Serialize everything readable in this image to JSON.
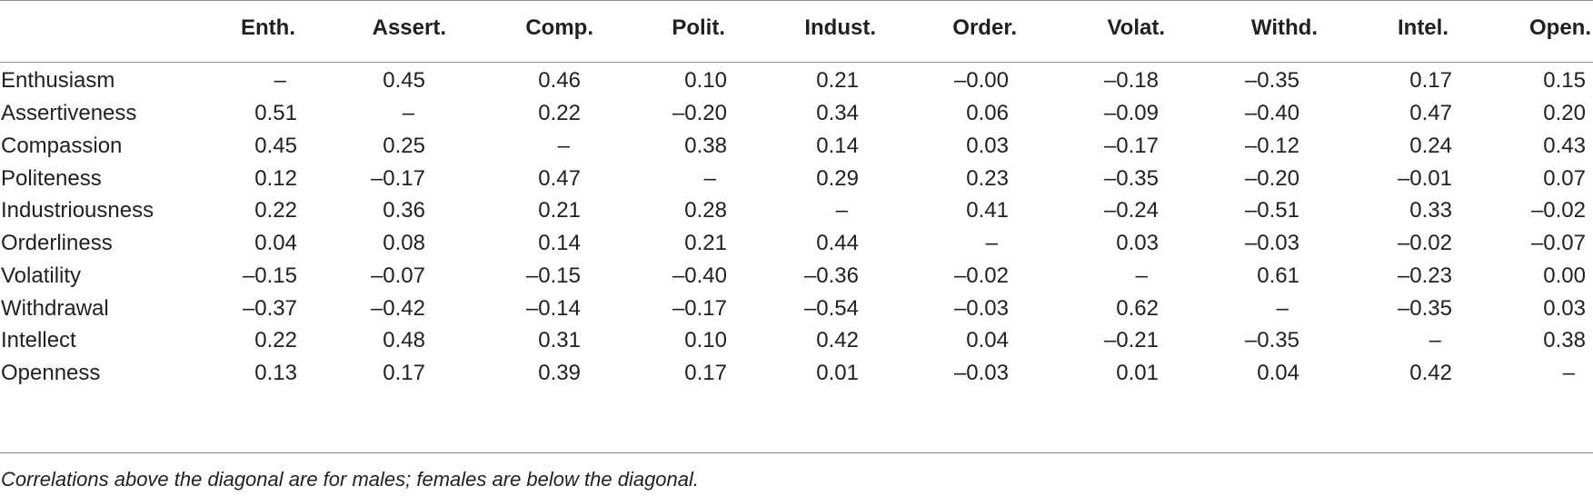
{
  "table": {
    "column_headers": [
      "Enth.",
      "Assert.",
      "Comp.",
      "Polit.",
      "Indust.",
      "Order.",
      "Volat.",
      "Withd.",
      "Intel.",
      "Open."
    ],
    "rows": [
      {
        "label": "Enthusiasm",
        "values": [
          "–",
          "0.45",
          "0.46",
          "0.10",
          "0.21",
          "–0.00",
          "–0.18",
          "–0.35",
          "0.17",
          "0.15"
        ]
      },
      {
        "label": "Assertiveness",
        "values": [
          "0.51",
          "–",
          "0.22",
          "–0.20",
          "0.34",
          "0.06",
          "–0.09",
          "–0.40",
          "0.47",
          "0.20"
        ]
      },
      {
        "label": "Compassion",
        "values": [
          "0.45",
          "0.25",
          "–",
          "0.38",
          "0.14",
          "0.03",
          "–0.17",
          "–0.12",
          "0.24",
          "0.43"
        ]
      },
      {
        "label": "Politeness",
        "values": [
          "0.12",
          "–0.17",
          "0.47",
          "–",
          "0.29",
          "0.23",
          "–0.35",
          "–0.20",
          "–0.01",
          "0.07"
        ]
      },
      {
        "label": "Industriousness",
        "values": [
          "0.22",
          "0.36",
          "0.21",
          "0.28",
          "–",
          "0.41",
          "–0.24",
          "–0.51",
          "0.33",
          "–0.02"
        ]
      },
      {
        "label": "Orderliness",
        "values": [
          "0.04",
          "0.08",
          "0.14",
          "0.21",
          "0.44",
          "–",
          "0.03",
          "–0.03",
          "–0.02",
          "–0.07"
        ]
      },
      {
        "label": "Volatility",
        "values": [
          "–0.15",
          "–0.07",
          "–0.15",
          "–0.40",
          "–0.36",
          "–0.02",
          "–",
          "0.61",
          "–0.23",
          "0.00"
        ]
      },
      {
        "label": "Withdrawal",
        "values": [
          "–0.37",
          "–0.42",
          "–0.14",
          "–0.17",
          "–0.54",
          "–0.03",
          "0.62",
          "–",
          "–0.35",
          "0.03"
        ]
      },
      {
        "label": "Intellect",
        "values": [
          "0.22",
          "0.48",
          "0.31",
          "0.10",
          "0.42",
          "0.04",
          "–0.21",
          "–0.35",
          "–",
          "0.38"
        ]
      },
      {
        "label": "Openness",
        "values": [
          "0.13",
          "0.17",
          "0.39",
          "0.17",
          "0.01",
          "–0.03",
          "0.01",
          "0.04",
          "0.42",
          "–"
        ]
      }
    ]
  },
  "footnote": "Correlations above the diagonal are for males; females are below the diagonal."
}
